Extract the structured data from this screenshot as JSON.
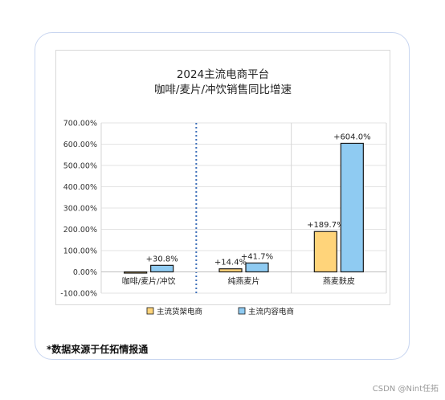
{
  "chart_data": {
    "type": "bar",
    "title": [
      "2024主流电商平台",
      "咖啡/麦片/冲饮销售同比增速"
    ],
    "categories": [
      "咖啡/麦片/冲饮",
      "纯燕麦片",
      "燕麦麸皮"
    ],
    "series": [
      {
        "name": "主流货架电商",
        "values": [
          -4.0,
          14.4,
          189.7
        ],
        "labels": [
          "",
          "+14.4%",
          "+189.7%"
        ],
        "color": "#FFD47A"
      },
      {
        "name": "主流内容电商",
        "values": [
          30.8,
          41.7,
          604.0
        ],
        "labels": [
          "+30.8%",
          "+41.7%",
          "+604.0%"
        ],
        "color": "#8FCBF2"
      }
    ],
    "ylim": [
      -100,
      700
    ],
    "yticks": [
      "-100.00%",
      "0.00%",
      "100.00%",
      "200.00%",
      "300.00%",
      "400.00%",
      "500.00%",
      "600.00%",
      "700.00%"
    ],
    "legend_position": "bottom",
    "grid": true
  },
  "source_note": "*数据来源于任拓情报通",
  "watermark": "CSDN @Nint任拓"
}
